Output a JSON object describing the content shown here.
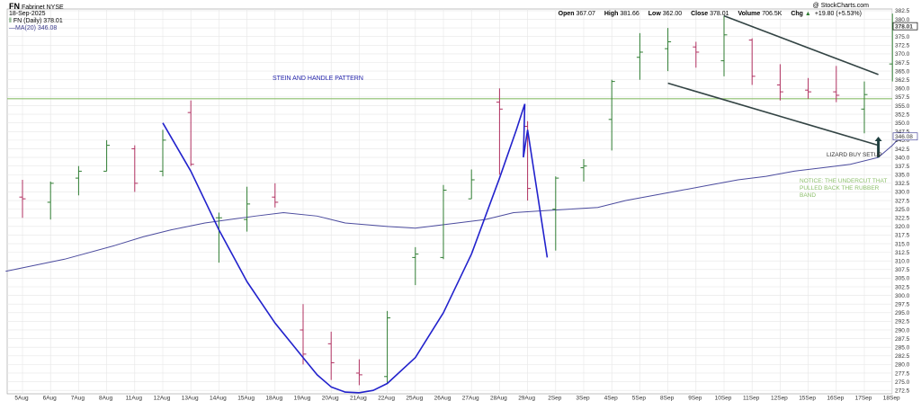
{
  "header": {
    "symbol": "FN",
    "company": "Fabrinet",
    "exchange": "NYSE",
    "date": "18-Sep-2025",
    "source": "@ StockCharts.com",
    "series_label": "FN (Daily) 378.01",
    "ma_label": "MA(20) 346.08",
    "open_label": "Open",
    "open": "367.07",
    "high_label": "High",
    "high": "381.66",
    "low_label": "Low",
    "low": "362.00",
    "close_label": "Close",
    "close": "378.01",
    "volume_label": "Volume",
    "volume": "706.5K",
    "chg_label": "Chg",
    "chg": "+19.80 (+5.53%)",
    "chg_arrow": "▲"
  },
  "annotations": {
    "pattern": "STEIN AND HANDLE PATTERN",
    "lizard": "LIZARD BUY SETUP",
    "notice": [
      "NOTICE: THE UNDERCUT THAT",
      "PULLED BACK THE RUBBER",
      "BAND"
    ]
  },
  "colors": {
    "up": "#2f7d32",
    "down": "#b03060",
    "ma": "#4b4b9e",
    "drawing": "#2222cc",
    "trend": "#334444",
    "hline": "#8cbf6b",
    "grid": "#e6e6e6",
    "notice": "#8cbf6b",
    "annotation": "#2222aa"
  },
  "chart_data": {
    "type": "ohlc",
    "ylim": [
      271.5,
      383
    ],
    "yticks": [
      272.5,
      275,
      277.5,
      280,
      282.5,
      285,
      287.5,
      290,
      292.5,
      295,
      297.5,
      300,
      302.5,
      305,
      307.5,
      310,
      312.5,
      315,
      317.5,
      320,
      322.5,
      325,
      327.5,
      330,
      332.5,
      335,
      337.5,
      340,
      342.5,
      345,
      347.5,
      350,
      352.5,
      355,
      357.5,
      360,
      362.5,
      365,
      367.5,
      370,
      372.5,
      375,
      377.5,
      380,
      382.5
    ],
    "last_price": "378.01",
    "ma_value": "346.08",
    "categories": [
      "5Aug",
      "6Aug",
      "7Aug",
      "8Aug",
      "11Aug",
      "12Aug",
      "13Aug",
      "14Aug",
      "15Aug",
      "18Aug",
      "19Aug",
      "20Aug",
      "21Aug",
      "22Aug",
      "25Aug",
      "26Aug",
      "27Aug",
      "28Aug",
      "29Aug",
      "2Sep",
      "3Sep",
      "4Sep",
      "5Sep",
      "8Sep",
      "9Sep",
      "10Sep",
      "11Sep",
      "12Sep",
      "15Sep",
      "16Sep",
      "17Sep",
      "18Sep"
    ],
    "bars": [
      {
        "o": 328.5,
        "h": 333.5,
        "l": 322.5,
        "c": 328.0
      },
      {
        "o": 327.0,
        "h": 333.0,
        "l": 322.0,
        "c": 332.5
      },
      {
        "o": 334.0,
        "h": 337.5,
        "l": 329.0,
        "c": 336.0
      },
      {
        "o": 336.0,
        "h": 345.0,
        "l": 336.0,
        "c": 343.5
      },
      {
        "o": 342.5,
        "h": 343.5,
        "l": 330.0,
        "c": 332.5
      },
      {
        "o": 336.0,
        "h": 348.0,
        "l": 334.5,
        "c": 345.0
      },
      {
        "o": 353.0,
        "h": 356.5,
        "l": 337.5,
        "c": 338.0
      },
      {
        "o": 322.5,
        "h": 324.0,
        "l": 309.5,
        "c": 322.5
      },
      {
        "o": 322.0,
        "h": 331.5,
        "l": 318.5,
        "c": 326.5
      },
      {
        "o": 328.5,
        "h": 332.5,
        "l": 325.5,
        "c": 327.0
      },
      {
        "o": 290.0,
        "h": 297.5,
        "l": 280.0,
        "c": 283.0
      },
      {
        "o": 286.0,
        "h": 289.5,
        "l": 275.5,
        "c": 280.5
      },
      {
        "o": 277.5,
        "h": 281.5,
        "l": 274.0,
        "c": 277.0
      },
      {
        "o": 276.5,
        "h": 295.5,
        "l": 274.5,
        "c": 293.5
      },
      {
        "o": 311.0,
        "h": 314.0,
        "l": 303.0,
        "c": 312.0
      },
      {
        "o": 311.0,
        "h": 332.0,
        "l": 310.5,
        "c": 330.5
      },
      {
        "o": 328.0,
        "h": 336.5,
        "l": 328.0,
        "c": 333.5
      },
      {
        "o": 356.0,
        "h": 360.0,
        "l": 335.0,
        "c": 354.0
      },
      {
        "o": 349.0,
        "h": 350.5,
        "l": 327.5,
        "c": 331.0
      },
      {
        "o": 325.0,
        "h": 334.5,
        "l": 313.0,
        "c": 334.0
      },
      {
        "o": 337.0,
        "h": 339.5,
        "l": 333.0,
        "c": 337.5
      },
      {
        "o": 351.0,
        "h": 362.5,
        "l": 342.0,
        "c": 362.0
      },
      {
        "o": 369.0,
        "h": 376.0,
        "l": 362.5,
        "c": 370.5
      },
      {
        "o": 371.5,
        "h": 377.5,
        "l": 365.0,
        "c": 373.5
      },
      {
        "o": 372.0,
        "h": 373.5,
        "l": 366.0,
        "c": 370.5
      },
      {
        "o": 368.0,
        "h": 381.0,
        "l": 363.5,
        "c": 375.5
      },
      {
        "o": 374.0,
        "h": 374.5,
        "l": 361.0,
        "c": 363.5
      },
      {
        "o": 361.0,
        "h": 367.0,
        "l": 356.5,
        "c": 359.0
      },
      {
        "o": 359.5,
        "h": 363.0,
        "l": 357.0,
        "c": 359.0
      },
      {
        "o": 359.0,
        "h": 366.5,
        "l": 356.0,
        "c": 358.0
      },
      {
        "o": 354.0,
        "h": 362.0,
        "l": 347.0,
        "c": 358.2
      },
      {
        "o": 367.07,
        "h": 381.66,
        "l": 362.0,
        "c": 378.01
      }
    ],
    "ma20": [
      {
        "x": -0.6,
        "y": 307.0
      },
      {
        "x": 1.5,
        "y": 310.5
      },
      {
        "x": 3.3,
        "y": 314.5
      },
      {
        "x": 4.3,
        "y": 317.0
      },
      {
        "x": 5.3,
        "y": 319.0
      },
      {
        "x": 6.5,
        "y": 321.0
      },
      {
        "x": 8.3,
        "y": 323.0
      },
      {
        "x": 9.3,
        "y": 324.0
      },
      {
        "x": 10.5,
        "y": 323.0
      },
      {
        "x": 11.5,
        "y": 321.0
      },
      {
        "x": 13.0,
        "y": 320.0
      },
      {
        "x": 14.0,
        "y": 319.5
      },
      {
        "x": 15.5,
        "y": 321.0
      },
      {
        "x": 16.5,
        "y": 322.0
      },
      {
        "x": 17.5,
        "y": 324.0
      },
      {
        "x": 18.5,
        "y": 324.5
      },
      {
        "x": 19.5,
        "y": 325.0
      },
      {
        "x": 20.5,
        "y": 325.5
      },
      {
        "x": 21.5,
        "y": 327.5
      },
      {
        "x": 22.5,
        "y": 329.0
      },
      {
        "x": 23.5,
        "y": 330.5
      },
      {
        "x": 24.5,
        "y": 332.0
      },
      {
        "x": 25.5,
        "y": 333.5
      },
      {
        "x": 26.5,
        "y": 334.5
      },
      {
        "x": 27.5,
        "y": 336.0
      },
      {
        "x": 28.5,
        "y": 337.0
      },
      {
        "x": 29.5,
        "y": 338.0
      },
      {
        "x": 30.5,
        "y": 340.0
      },
      {
        "x": 31.0,
        "y": 343.5
      },
      {
        "x": 31.3,
        "y": 346.08
      }
    ],
    "drawings": {
      "cup": [
        {
          "x": 5.0,
          "y": 350.0
        },
        {
          "x": 6.0,
          "y": 336.0
        },
        {
          "x": 7.0,
          "y": 319.0
        },
        {
          "x": 8.0,
          "y": 304.0
        },
        {
          "x": 9.0,
          "y": 292.0
        },
        {
          "x": 10.0,
          "y": 282.0
        },
        {
          "x": 10.5,
          "y": 277.0
        },
        {
          "x": 11.0,
          "y": 273.5
        },
        {
          "x": 11.5,
          "y": 272.0
        },
        {
          "x": 12.0,
          "y": 271.8
        },
        {
          "x": 12.5,
          "y": 272.5
        },
        {
          "x": 13.0,
          "y": 274.5
        },
        {
          "x": 14.0,
          "y": 282.0
        },
        {
          "x": 15.0,
          "y": 295.0
        },
        {
          "x": 16.0,
          "y": 312.0
        },
        {
          "x": 17.0,
          "y": 334.0
        },
        {
          "x": 17.6,
          "y": 348.0
        },
        {
          "x": 17.9,
          "y": 355.5
        }
      ],
      "handle": [
        {
          "x": 17.9,
          "y": 355.5
        },
        {
          "x": 17.85,
          "y": 340.0
        },
        {
          "x": 18.0,
          "y": 348.0
        },
        {
          "x": 18.7,
          "y": 311.0
        }
      ],
      "trend_upper": [
        {
          "x": 25.0,
          "y": 381.0
        },
        {
          "x": 30.5,
          "y": 364.0
        }
      ],
      "trend_lower": [
        {
          "x": 23.0,
          "y": 361.5
        },
        {
          "x": 30.5,
          "y": 343.5
        }
      ],
      "horizontal": 357.0,
      "arrow": {
        "x": 30.5,
        "y_tip": 346.0,
        "y_base": 340.0
      }
    }
  }
}
